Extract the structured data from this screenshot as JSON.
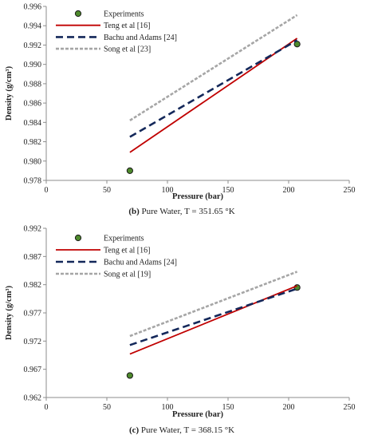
{
  "chart_data": [
    {
      "type": "line",
      "xlabel": "Pressure (bar)",
      "ylabel": "Density (g/cm³)",
      "caption_label": "(b)",
      "caption_text": " Pure Water, T = 351.65 °K",
      "xlim": [
        0,
        250
      ],
      "ylim": [
        0.978,
        0.996
      ],
      "xticks": [
        0,
        50,
        100,
        150,
        200,
        250
      ],
      "yticks": [
        0.978,
        0.98,
        0.982,
        0.984,
        0.986,
        0.988,
        0.99,
        0.992,
        0.994,
        0.996
      ],
      "ytick_labels": [
        "0.978",
        "0.980",
        "0.982",
        "0.984",
        "0.986",
        "0.988",
        "0.990",
        "0.992",
        "0.994",
        "0.996"
      ],
      "grid": false,
      "legend_position": "top-left",
      "series": [
        {
          "name": "Experiments",
          "style": "marker",
          "color": "#4e8a2c",
          "x": [
            69,
            207
          ],
          "y": [
            0.979,
            0.9921
          ]
        },
        {
          "name": "Teng et al [16]",
          "style": "solid",
          "color": "#c00000",
          "x": [
            69,
            207
          ],
          "y": [
            0.9809,
            0.9927
          ]
        },
        {
          "name": "Bachu and Adams [24]",
          "style": "dashed",
          "color": "#14285a",
          "x": [
            69,
            207
          ],
          "y": [
            0.9825,
            0.9925
          ]
        },
        {
          "name": "Song et al [23]",
          "style": "double-dashed",
          "color": "#a6a6a6",
          "x": [
            69,
            207
          ],
          "y": [
            0.9842,
            0.9951
          ]
        }
      ]
    },
    {
      "type": "line",
      "xlabel": "Pressure (bar)",
      "ylabel": "Density (g/cm³)",
      "caption_label": "(c)",
      "caption_text": " Pure Water, T = 368.15 °K",
      "xlim": [
        0,
        250
      ],
      "ylim": [
        0.962,
        0.992
      ],
      "xticks": [
        0,
        50,
        100,
        150,
        200,
        250
      ],
      "yticks": [
        0.962,
        0.967,
        0.972,
        0.977,
        0.982,
        0.987,
        0.992
      ],
      "ytick_labels": [
        "0.962",
        "0.967",
        "0.972",
        "0.977",
        "0.982",
        "0.987",
        "0.992"
      ],
      "grid": false,
      "legend_position": "top-left",
      "series": [
        {
          "name": "Experiments",
          "style": "marker",
          "color": "#4e8a2c",
          "x": [
            69,
            207
          ],
          "y": [
            0.9659,
            0.9815
          ]
        },
        {
          "name": "Teng et al [16]",
          "style": "solid",
          "color": "#c00000",
          "x": [
            69,
            207
          ],
          "y": [
            0.9697,
            0.9818
          ]
        },
        {
          "name": "Bachu and Adams [24]",
          "style": "dashed",
          "color": "#14285a",
          "x": [
            69,
            207
          ],
          "y": [
            0.9713,
            0.9813
          ]
        },
        {
          "name": "Song et al [19]",
          "style": "double-dashed",
          "color": "#a6a6a6",
          "x": [
            69,
            207
          ],
          "y": [
            0.9729,
            0.9843
          ]
        }
      ]
    }
  ]
}
